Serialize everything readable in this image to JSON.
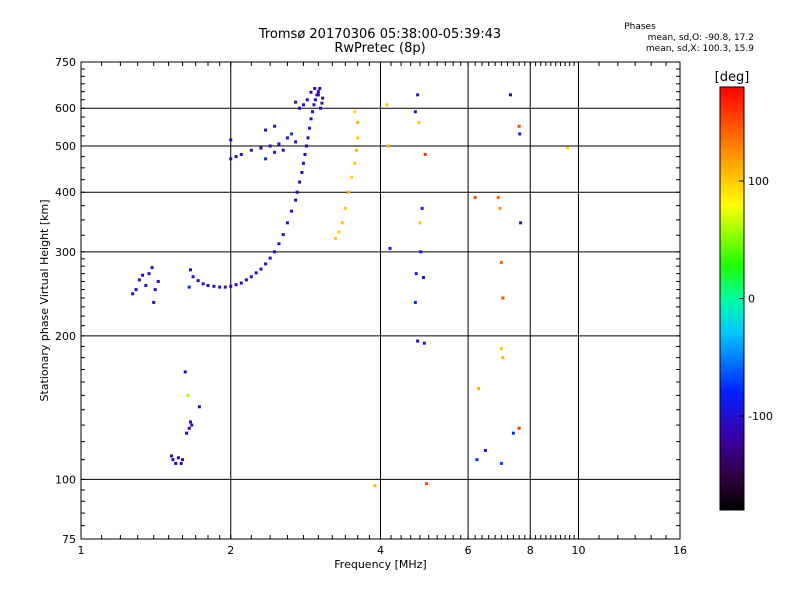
{
  "title": {
    "line1": "Tromsø 20170306 05:38:00-05:39:43",
    "line2": "RwPretec (8p)"
  },
  "stats": {
    "heading": "Phases",
    "line1": "mean, sd,O: -90.8, 17.2",
    "line2": "mean, sd,X: 100.3, 15.9"
  },
  "colorbar": {
    "unit_label": "[deg]",
    "ticks": [
      "100",
      "0",
      "-100"
    ],
    "tick_values": [
      100,
      0,
      -100
    ],
    "range": [
      -180,
      180
    ]
  },
  "chart_data": {
    "type": "scatter",
    "xlabel": "Frequency [MHz]",
    "ylabel": "Stationary phase Virtual Height [km]",
    "xscale": "log",
    "yscale": "log",
    "xlim": [
      1,
      16
    ],
    "ylim": [
      75,
      750
    ],
    "xticks": [
      1,
      2,
      4,
      6,
      8,
      10,
      16
    ],
    "xtick_labels": [
      "1",
      "2",
      "4",
      "6",
      "8",
      "10",
      "16"
    ],
    "yticks": [
      75,
      100,
      200,
      300,
      400,
      500,
      600,
      750
    ],
    "ytick_labels": [
      "75",
      "100",
      "200",
      "300",
      "400",
      "500",
      "600",
      "750"
    ],
    "grid": true,
    "color_value": "phase [deg]",
    "series": [
      {
        "points": [
          [
            1.27,
            245,
            -100
          ],
          [
            1.29,
            250,
            -105
          ],
          [
            1.31,
            262,
            -110
          ],
          [
            1.33,
            268,
            -100
          ],
          [
            1.35,
            255,
            -95
          ],
          [
            1.37,
            270,
            -105
          ],
          [
            1.39,
            278,
            -110
          ],
          [
            1.4,
            235,
            -115
          ],
          [
            1.41,
            250,
            -100
          ],
          [
            1.43,
            260,
            -108
          ],
          [
            1.52,
            112,
            -110
          ],
          [
            1.53,
            110,
            -100
          ],
          [
            1.55,
            108,
            -115
          ],
          [
            1.57,
            111,
            -105
          ],
          [
            1.59,
            108,
            -110
          ],
          [
            1.6,
            110,
            -100
          ],
          [
            1.62,
            168,
            -105
          ],
          [
            1.63,
            125,
            -110
          ],
          [
            1.64,
            150,
            60
          ],
          [
            1.65,
            128,
            -115
          ],
          [
            1.66,
            132,
            -100
          ],
          [
            1.67,
            130,
            -110
          ],
          [
            1.73,
            142,
            -105
          ],
          [
            1.65,
            253,
            -80
          ],
          [
            1.66,
            275,
            -105
          ],
          [
            1.68,
            266,
            -95
          ],
          [
            1.72,
            261,
            -110
          ],
          [
            1.76,
            257,
            -100
          ],
          [
            1.8,
            255,
            -110
          ],
          [
            1.85,
            254,
            -105
          ],
          [
            1.9,
            253,
            -100
          ],
          [
            1.95,
            253,
            -115
          ],
          [
            2.0,
            254,
            -110
          ],
          [
            2.05,
            256,
            -105
          ],
          [
            2.1,
            258,
            -110
          ],
          [
            2.15,
            262,
            -100
          ],
          [
            2.2,
            266,
            -105
          ],
          [
            2.25,
            271,
            -110
          ],
          [
            2.3,
            276,
            -100
          ],
          [
            2.35,
            283,
            -105
          ],
          [
            2.4,
            291,
            -110
          ],
          [
            2.45,
            300,
            -95
          ],
          [
            2.5,
            312,
            -100
          ],
          [
            2.55,
            326,
            -110
          ],
          [
            2.6,
            345,
            -105
          ],
          [
            2.65,
            365,
            -100
          ],
          [
            2.7,
            385,
            -110
          ],
          [
            2.72,
            400,
            -105
          ],
          [
            2.75,
            420,
            -100
          ],
          [
            2.78,
            440,
            -110
          ],
          [
            2.8,
            460,
            -105
          ],
          [
            2.82,
            480,
            -100
          ],
          [
            2.84,
            500,
            -110
          ],
          [
            2.86,
            520,
            -105
          ],
          [
            2.88,
            545,
            -100
          ],
          [
            2.9,
            570,
            -110
          ],
          [
            2.92,
            590,
            -105
          ],
          [
            2.94,
            610,
            -110
          ],
          [
            2.96,
            625,
            -105
          ],
          [
            2.98,
            640,
            -100
          ],
          [
            3.0,
            650,
            -110
          ],
          [
            3.02,
            660,
            -120
          ],
          [
            2.7,
            618,
            -110
          ],
          [
            2.75,
            600,
            -115
          ],
          [
            2.8,
            610,
            -105
          ],
          [
            2.85,
            625,
            -110
          ],
          [
            2.9,
            648,
            -105
          ],
          [
            2.95,
            660,
            -120
          ],
          [
            3.0,
            640,
            -115
          ],
          [
            3.05,
            615,
            -110
          ],
          [
            3.03,
            600,
            -105
          ],
          [
            3.06,
            630,
            -110
          ],
          [
            2.0,
            470,
            -105
          ],
          [
            2.05,
            475,
            -110
          ],
          [
            2.1,
            480,
            -100
          ],
          [
            2.2,
            490,
            -105
          ],
          [
            2.3,
            495,
            -110
          ],
          [
            2.35,
            470,
            -80
          ],
          [
            2.4,
            500,
            -105
          ],
          [
            2.45,
            485,
            -90
          ],
          [
            2.5,
            505,
            -100
          ],
          [
            2.55,
            490,
            -110
          ],
          [
            2.6,
            520,
            -105
          ],
          [
            2.65,
            530,
            -70
          ],
          [
            2.7,
            510,
            -105
          ],
          [
            2.35,
            540,
            -110
          ],
          [
            2.0,
            515,
            -105
          ],
          [
            2.45,
            550,
            -100
          ],
          [
            3.25,
            320,
            100
          ],
          [
            3.3,
            330,
            95
          ],
          [
            3.35,
            345,
            105
          ],
          [
            3.4,
            370,
            100
          ],
          [
            3.45,
            400,
            110
          ],
          [
            3.5,
            430,
            95
          ],
          [
            3.55,
            460,
            100
          ],
          [
            3.58,
            490,
            105
          ],
          [
            3.6,
            520,
            100
          ],
          [
            3.6,
            560,
            110
          ],
          [
            3.55,
            590,
            95
          ],
          [
            4.12,
            610,
            100
          ],
          [
            4.15,
            500,
            110
          ],
          [
            4.18,
            305,
            -100
          ],
          [
            4.7,
            590,
            -110
          ],
          [
            4.75,
            640,
            -100
          ],
          [
            4.78,
            560,
            100
          ],
          [
            4.72,
            270,
            -90
          ],
          [
            4.7,
            235,
            -80
          ],
          [
            4.75,
            195,
            -100
          ],
          [
            4.85,
            370,
            -95
          ],
          [
            4.8,
            345,
            100
          ],
          [
            4.82,
            300,
            -90
          ],
          [
            4.88,
            265,
            -100
          ],
          [
            4.9,
            193,
            -105
          ],
          [
            4.92,
            480,
            160
          ],
          [
            4.95,
            98,
            150
          ],
          [
            6.2,
            390,
            150
          ],
          [
            6.3,
            155,
            110
          ],
          [
            6.25,
            110,
            -80
          ],
          [
            6.5,
            115,
            -100
          ],
          [
            6.9,
            390,
            140
          ],
          [
            6.95,
            370,
            120
          ],
          [
            7.0,
            285,
            140
          ],
          [
            7.05,
            240,
            150
          ],
          [
            7.0,
            188,
            100
          ],
          [
            7.05,
            180,
            110
          ],
          [
            7.0,
            108,
            -70
          ],
          [
            7.3,
            640,
            -120
          ],
          [
            7.4,
            125,
            -75
          ],
          [
            7.6,
            550,
            150
          ],
          [
            7.62,
            530,
            -90
          ],
          [
            7.65,
            345,
            -100
          ],
          [
            7.6,
            128,
            160
          ],
          [
            3.9,
            97,
            110
          ],
          [
            9.5,
            495,
            90
          ]
        ]
      }
    ]
  }
}
